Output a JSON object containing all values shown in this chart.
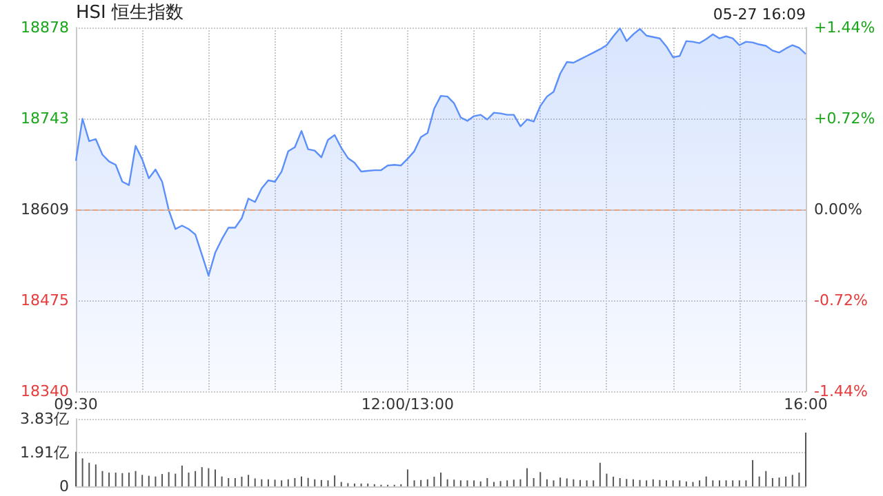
{
  "chart_data": [
    {
      "type": "area",
      "title": "HSI 恒生指数",
      "annotations": [
        "05-27 16:09"
      ],
      "categories": [
        "09:30",
        null,
        null,
        null,
        null,
        null,
        null,
        null,
        null,
        null,
        null,
        null,
        null,
        null,
        null,
        null,
        null,
        null,
        null,
        null,
        null,
        null,
        null,
        null,
        null,
        null,
        null,
        null,
        null,
        null,
        null,
        null,
        null,
        null,
        null,
        null,
        null,
        null,
        null,
        null,
        null,
        null,
        null,
        null,
        null,
        null,
        null,
        null,
        null,
        null,
        "12:00/13:00",
        null,
        null,
        null,
        null,
        null,
        null,
        null,
        null,
        null,
        null,
        null,
        null,
        null,
        null,
        null,
        null,
        null,
        null,
        null,
        null,
        null,
        null,
        null,
        null,
        null,
        null,
        null,
        null,
        null,
        null,
        null,
        null,
        null,
        null,
        null,
        null,
        null,
        null,
        null,
        null,
        null,
        null,
        null,
        null,
        null,
        null,
        null,
        null,
        null,
        null,
        null,
        null,
        null,
        null,
        null,
        null,
        null,
        null,
        null,
        "16:00"
      ],
      "series": [
        {
          "color": "#5b8ff9",
          "values": [
            18681,
            18743,
            18710,
            18713,
            18690,
            18680,
            18675,
            18650,
            18645,
            18703,
            18683,
            18655,
            18668,
            18650,
            18608,
            18580,
            18585,
            18580,
            18572,
            18542,
            18511,
            18545,
            18565,
            18582,
            18582,
            18596,
            18625,
            18620,
            18640,
            18652,
            18650,
            18665,
            18695,
            18701,
            18725,
            18698,
            18696,
            18686,
            18712,
            18719,
            18700,
            18685,
            18678,
            18665,
            18666,
            18667,
            18667,
            18674,
            18675,
            18674,
            18684,
            18695,
            18716,
            18722,
            18758,
            18777,
            18776,
            18766,
            18745,
            18740,
            18747,
            18749,
            18742,
            18752,
            18751,
            18749,
            18749,
            18732,
            18742,
            18739,
            18762,
            18776,
            18783,
            18810,
            18827,
            18826,
            18831,
            18836,
            18841,
            18846,
            18852,
            18865,
            18877,
            18858,
            18868,
            18876,
            18866,
            18864,
            18862,
            18850,
            18834,
            18836,
            18858,
            18857,
            18855,
            18861,
            18868,
            18862,
            18865,
            18862,
            18852,
            18857,
            18856,
            18853,
            18851,
            18844,
            18841,
            18847,
            18852,
            18848,
            18839
          ]
        }
      ],
      "ylim": [
        18340,
        18878
      ],
      "yticks": [
        18340,
        18475,
        18609,
        18743,
        18878
      ],
      "y2lim": [
        -1.44,
        1.44
      ],
      "y2ticks": [
        {
          "value": -1.44,
          "label": "-1.44%"
        },
        {
          "value": -0.72,
          "label": "-0.72%"
        },
        {
          "value": 0,
          "label": "0.00%"
        },
        {
          "value": 0.72,
          "label": "+0.72%"
        },
        {
          "value": 1.44,
          "label": "+1.44%"
        }
      ],
      "ref_lines": [
        {
          "axis": "y",
          "value": 18609,
          "label": null,
          "color": "#e8a27c",
          "line_style": "dashed"
        }
      ],
      "grid": true
    },
    {
      "type": "bar",
      "color": "#555555",
      "categories": [
        null,
        null,
        null,
        null,
        null,
        null,
        null,
        null,
        null,
        null,
        null,
        null,
        null,
        null,
        null,
        null,
        null,
        null,
        null,
        null,
        null,
        null,
        null,
        null,
        null,
        null,
        null,
        null,
        null,
        null,
        null,
        null,
        null,
        null,
        null,
        null,
        null,
        null,
        null,
        null,
        null,
        null,
        null,
        null,
        null,
        null,
        null,
        null,
        null,
        null,
        null,
        null,
        null,
        null,
        null,
        null,
        null,
        null,
        null,
        null,
        null,
        null,
        null,
        null,
        null,
        null,
        null,
        null,
        null,
        null,
        null,
        null,
        null,
        null,
        null,
        null,
        null,
        null,
        null,
        null,
        null,
        null,
        null,
        null,
        null,
        null,
        null,
        null,
        null,
        null,
        null,
        null,
        null,
        null,
        null,
        null,
        null,
        null,
        null,
        null,
        null,
        null,
        null,
        null,
        null,
        null,
        null,
        null,
        null,
        null,
        null
      ],
      "values": [
        1.96,
        1.59,
        1.34,
        1.24,
        0.87,
        0.78,
        0.78,
        0.75,
        0.78,
        0.87,
        0.65,
        0.6,
        0.56,
        0.7,
        0.81,
        0.72,
        1.18,
        0.78,
        0.87,
        1.09,
        1.03,
        0.96,
        0.56,
        0.47,
        0.47,
        0.55,
        0.65,
        0.45,
        0.4,
        0.4,
        0.38,
        0.34,
        0.4,
        0.47,
        0.56,
        0.48,
        0.4,
        0.36,
        0.34,
        0.62,
        0.25,
        0.18,
        0.16,
        0.16,
        0.16,
        0.12,
        0.09,
        0.09,
        0.09,
        0.12,
        0.96,
        0.34,
        0.36,
        0.4,
        0.55,
        0.78,
        0.4,
        0.38,
        0.34,
        0.34,
        0.34,
        0.28,
        0.47,
        0.25,
        0.3,
        0.34,
        0.38,
        0.4,
        1.03,
        0.47,
        0.81,
        0.4,
        0.34,
        0.5,
        0.45,
        0.4,
        0.36,
        0.34,
        0.34,
        1.34,
        0.72,
        0.55,
        0.47,
        0.42,
        0.4,
        0.36,
        0.34,
        0.4,
        0.36,
        0.34,
        0.34,
        0.34,
        0.28,
        0.25,
        0.34,
        0.56,
        0.34,
        0.34,
        0.34,
        0.34,
        0.34,
        0.34,
        1.49,
        0.56,
        0.87,
        0.47,
        0.5,
        0.56,
        0.65,
        0.78,
        3.05
      ],
      "ylim": [
        0,
        3.83
      ],
      "yticks": [
        {
          "value": 0,
          "label": "0"
        },
        {
          "value": 1.91,
          "label": "1.91亿"
        },
        {
          "value": 3.83,
          "label": "3.83亿"
        }
      ],
      "tick_labels": "y",
      "grid": "y"
    }
  ]
}
